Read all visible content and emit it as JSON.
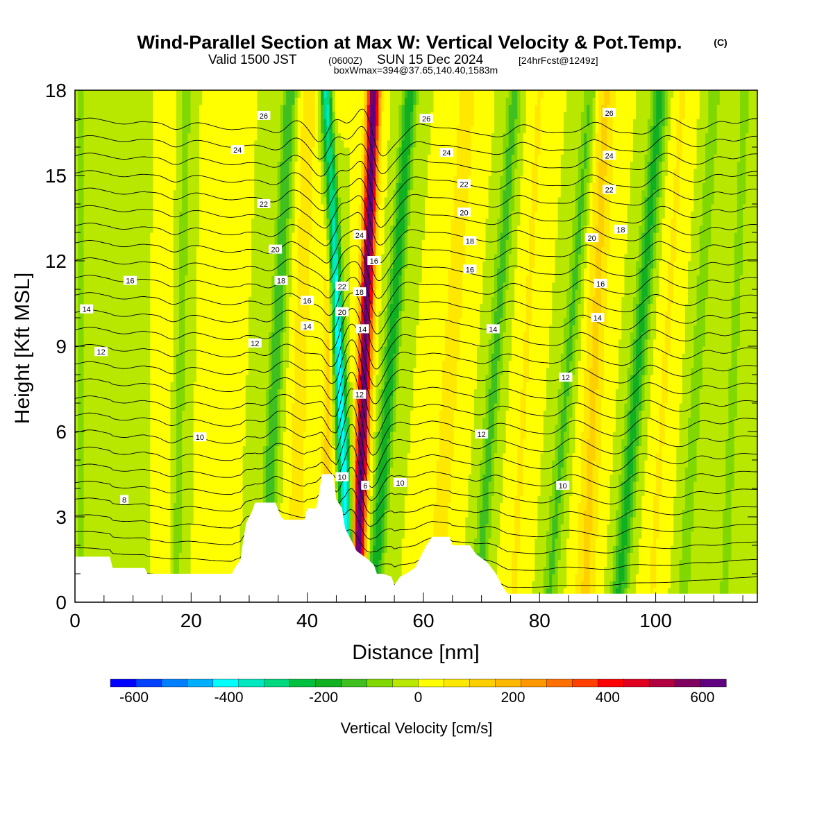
{
  "header": {
    "title": "Wind-Parallel Section at Max W: Vertical Velocity & Pot.Temp.",
    "copyright": "(C)",
    "valid_main": "Valid 1500 JST",
    "valid_utc": "(0600Z)",
    "valid_date": "SUN 15 Dec 2024",
    "forecast": "[24hrFcst@1249z]",
    "boxinfo": "boxWmax=394@37.65,140.40,1583m"
  },
  "chart_data": {
    "type": "heatmap",
    "xlabel": "Distance [nm]",
    "ylabel": "Height [Kft MSL]",
    "xlim": [
      0,
      117.5
    ],
    "ylim": [
      0,
      18
    ],
    "x_ticks": [
      "0",
      "20",
      "40",
      "60",
      "80",
      "100"
    ],
    "x_tick_values": [
      0,
      20,
      40,
      60,
      80,
      100
    ],
    "y_ticks": [
      "0",
      "3",
      "6",
      "9",
      "12",
      "15",
      "18"
    ],
    "y_tick_values": [
      0,
      3,
      6,
      9,
      12,
      15,
      18
    ],
    "colorbar": {
      "label": "Vertical Velocity [cm/s]",
      "ticks": [
        "-600",
        "-400",
        "-200",
        "0",
        "200",
        "400",
        "600"
      ],
      "tick_values": [
        -600,
        -400,
        -200,
        0,
        200,
        400,
        600
      ],
      "range": [
        -650,
        650
      ],
      "colors": [
        "#0000ff",
        "#0040ff",
        "#0080ff",
        "#00b0ff",
        "#00ffff",
        "#00e8c0",
        "#00d880",
        "#00c040",
        "#10b020",
        "#40c020",
        "#80d800",
        "#b8e800",
        "#ffff00",
        "#ffe800",
        "#ffd000",
        "#ffb800",
        "#ff9800",
        "#ff7000",
        "#ff4000",
        "#ff0000",
        "#e00020",
        "#b00040",
        "#800060",
        "#600080"
      ]
    },
    "terrain": [
      [
        0,
        1.6
      ],
      [
        6,
        1.6
      ],
      [
        6.5,
        1.2
      ],
      [
        12,
        1.2
      ],
      [
        12.5,
        1.0
      ],
      [
        27,
        1.0
      ],
      [
        27.5,
        1.2
      ],
      [
        28.5,
        1.5
      ],
      [
        29,
        2.2
      ],
      [
        29.5,
        2.8
      ],
      [
        30.5,
        3.2
      ],
      [
        31,
        3.5
      ],
      [
        34.5,
        3.5
      ],
      [
        35.5,
        3.0
      ],
      [
        36,
        2.9
      ],
      [
        39.5,
        2.9
      ],
      [
        40,
        3.3
      ],
      [
        41.5,
        3.3
      ],
      [
        42,
        3.8
      ],
      [
        42.5,
        4.5
      ],
      [
        44.5,
        4.5
      ],
      [
        45,
        3.6
      ],
      [
        46,
        3.3
      ],
      [
        46.5,
        2.6
      ],
      [
        47.5,
        2.2
      ],
      [
        48.5,
        1.8
      ],
      [
        50.5,
        1.5
      ],
      [
        51.5,
        1.3
      ],
      [
        52,
        1.0
      ],
      [
        53,
        1.0
      ],
      [
        54.5,
        0.9
      ],
      [
        55,
        0.6
      ],
      [
        56,
        0.9
      ],
      [
        57,
        1.0
      ],
      [
        58.5,
        1.2
      ],
      [
        59.5,
        1.6
      ],
      [
        60.5,
        2.0
      ],
      [
        61.5,
        2.3
      ],
      [
        64.5,
        2.3
      ],
      [
        65,
        2.0
      ],
      [
        68,
        2.0
      ],
      [
        69,
        1.7
      ],
      [
        71,
        1.4
      ],
      [
        72.5,
        1.0
      ],
      [
        73.5,
        0.6
      ],
      [
        74.5,
        0.3
      ],
      [
        117.5,
        0.3
      ]
    ],
    "w_features": [
      {
        "center": 49.5,
        "tilt": 0.16,
        "width": 1.1,
        "amplitude": 640
      },
      {
        "center": 46.0,
        "tilt": -0.22,
        "width": 1.0,
        "amplitude": -430
      },
      {
        "center": 53.5,
        "tilt": 0.35,
        "width": 1.3,
        "amplitude": -200
      },
      {
        "center": 34.0,
        "tilt": 0.25,
        "width": 1.2,
        "amplitude": -160
      },
      {
        "center": 38.5,
        "tilt": 0.15,
        "width": 1.5,
        "amplitude": 90
      },
      {
        "center": 43.5,
        "tilt": 0.05,
        "width": 1.0,
        "amplitude": 130
      },
      {
        "center": 64.0,
        "tilt": 0.3,
        "width": 2.0,
        "amplitude": 80
      },
      {
        "center": 71.5,
        "tilt": 0.35,
        "width": 1.3,
        "amplitude": -130
      },
      {
        "center": 77.0,
        "tilt": 0.25,
        "width": 1.5,
        "amplitude": 60
      },
      {
        "center": 84.0,
        "tilt": 0.4,
        "width": 1.3,
        "amplitude": -120
      },
      {
        "center": 89.0,
        "tilt": 0.2,
        "width": 1.8,
        "amplitude": 120
      },
      {
        "center": 96.0,
        "tilt": 0.4,
        "width": 1.4,
        "amplitude": -180
      },
      {
        "center": 101.0,
        "tilt": 0.3,
        "width": 1.5,
        "amplitude": 60
      },
      {
        "center": 106.5,
        "tilt": 0.3,
        "width": 1.2,
        "amplitude": -90
      },
      {
        "center": 18.0,
        "tilt": 0.1,
        "width": 1.2,
        "amplitude": -70
      },
      {
        "center": 23.5,
        "tilt": 0.1,
        "width": 1.5,
        "amplitude": 50
      },
      {
        "center": 15.5,
        "tilt": 0.05,
        "width": 1.0,
        "amplitude": 50
      },
      {
        "center": 1.0,
        "tilt": 0.0,
        "width": 1.2,
        "amplitude": -60
      },
      {
        "center": 10.0,
        "tilt": 0.0,
        "width": 1.2,
        "amplitude": -50
      },
      {
        "center": 113.0,
        "tilt": 0.2,
        "width": 1.3,
        "amplitude": -70
      }
    ],
    "theta_contours": {
      "levels_c": [
        2,
        3,
        4,
        5,
        6,
        7,
        8,
        9,
        10,
        11,
        12,
        13,
        14,
        15,
        16,
        17,
        18,
        19,
        20,
        21,
        22,
        23,
        24,
        25,
        26,
        27,
        28
      ]
    },
    "contour_labels": [
      {
        "x": 8.5,
        "y": 3.6,
        "text": "8"
      },
      {
        "x": 21.5,
        "y": 5.8,
        "text": "10"
      },
      {
        "x": 4.5,
        "y": 8.8,
        "text": "12"
      },
      {
        "x": 2.0,
        "y": 10.3,
        "text": "14"
      },
      {
        "x": 9.5,
        "y": 11.3,
        "text": "16"
      },
      {
        "x": 31.0,
        "y": 9.1,
        "text": "12"
      },
      {
        "x": 40.0,
        "y": 9.7,
        "text": "14"
      },
      {
        "x": 40.0,
        "y": 10.6,
        "text": "16"
      },
      {
        "x": 35.5,
        "y": 11.3,
        "text": "18"
      },
      {
        "x": 34.5,
        "y": 12.4,
        "text": "20"
      },
      {
        "x": 32.5,
        "y": 14.0,
        "text": "22"
      },
      {
        "x": 28.0,
        "y": 15.9,
        "text": "24"
      },
      {
        "x": 32.5,
        "y": 17.1,
        "text": "26"
      },
      {
        "x": 46.0,
        "y": 4.4,
        "text": "10"
      },
      {
        "x": 49.0,
        "y": 7.3,
        "text": "12"
      },
      {
        "x": 49.5,
        "y": 9.6,
        "text": "14"
      },
      {
        "x": 49.0,
        "y": 10.9,
        "text": "18"
      },
      {
        "x": 46.0,
        "y": 10.2,
        "text": "20"
      },
      {
        "x": 46.0,
        "y": 11.1,
        "text": "22"
      },
      {
        "x": 49.0,
        "y": 12.9,
        "text": "24"
      },
      {
        "x": 51.5,
        "y": 12.0,
        "text": "16"
      },
      {
        "x": 50.0,
        "y": 4.1,
        "text": "6"
      },
      {
        "x": 56.0,
        "y": 4.2,
        "text": "10"
      },
      {
        "x": 70.0,
        "y": 5.9,
        "text": "12"
      },
      {
        "x": 72.0,
        "y": 9.6,
        "text": "14"
      },
      {
        "x": 68.0,
        "y": 11.7,
        "text": "16"
      },
      {
        "x": 68.0,
        "y": 12.7,
        "text": "18"
      },
      {
        "x": 67.0,
        "y": 13.7,
        "text": "20"
      },
      {
        "x": 67.0,
        "y": 14.7,
        "text": "22"
      },
      {
        "x": 64.0,
        "y": 15.8,
        "text": "24"
      },
      {
        "x": 60.5,
        "y": 17.0,
        "text": "26"
      },
      {
        "x": 84.5,
        "y": 7.9,
        "text": "12"
      },
      {
        "x": 84.0,
        "y": 4.1,
        "text": "10"
      },
      {
        "x": 90.0,
        "y": 10.0,
        "text": "14"
      },
      {
        "x": 90.5,
        "y": 11.2,
        "text": "16"
      },
      {
        "x": 89.0,
        "y": 12.8,
        "text": "20"
      },
      {
        "x": 94.0,
        "y": 13.1,
        "text": "18"
      },
      {
        "x": 92.0,
        "y": 14.5,
        "text": "22"
      },
      {
        "x": 92.0,
        "y": 15.7,
        "text": "24"
      },
      {
        "x": 92.0,
        "y": 17.2,
        "text": "26"
      }
    ]
  }
}
